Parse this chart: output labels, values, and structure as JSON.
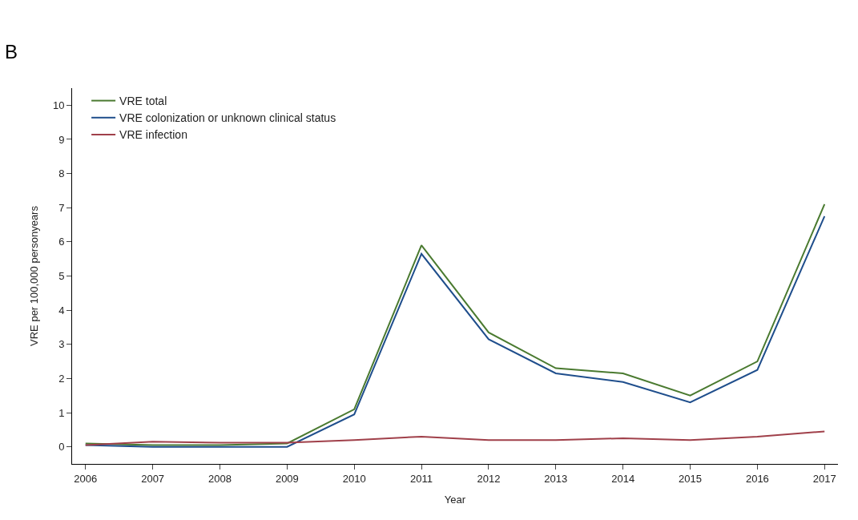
{
  "chart_data": {
    "type": "line",
    "xlabel": "Year",
    "ylabel": "VRE per 100,000 personyears",
    "annotations": [
      "B"
    ],
    "x": [
      2006,
      2007,
      2008,
      2009,
      2010,
      2011,
      2012,
      2013,
      2014,
      2015,
      2016,
      2017
    ],
    "series": [
      {
        "name": "VRE total",
        "color": "#4a7a30",
        "values": [
          0.1,
          0.05,
          0.05,
          0.1,
          1.1,
          5.9,
          3.35,
          2.3,
          2.15,
          1.5,
          2.5,
          7.1
        ]
      },
      {
        "name": "VRE colonization or unknown clinical status",
        "color": "#1f4e8c",
        "values": [
          0.05,
          0.0,
          0.0,
          0.0,
          0.95,
          5.65,
          3.15,
          2.15,
          1.9,
          1.3,
          2.25,
          6.75
        ]
      },
      {
        "name": "VRE infection",
        "color": "#a0404a",
        "values": [
          0.05,
          0.15,
          0.12,
          0.12,
          0.2,
          0.3,
          0.2,
          0.2,
          0.25,
          0.2,
          0.3,
          0.45
        ]
      }
    ],
    "xlim": [
      2005.8,
      2017.2
    ],
    "xticks": [
      2006,
      2007,
      2008,
      2009,
      2010,
      2011,
      2012,
      2013,
      2014,
      2015,
      2016,
      2017
    ],
    "ylim": [
      -0.5,
      10.5
    ],
    "yticks": [
      0,
      1,
      2,
      3,
      4,
      5,
      6,
      7,
      8,
      9,
      10
    ],
    "legend": "top left",
    "marker": "none",
    "line_style": "solid"
  }
}
